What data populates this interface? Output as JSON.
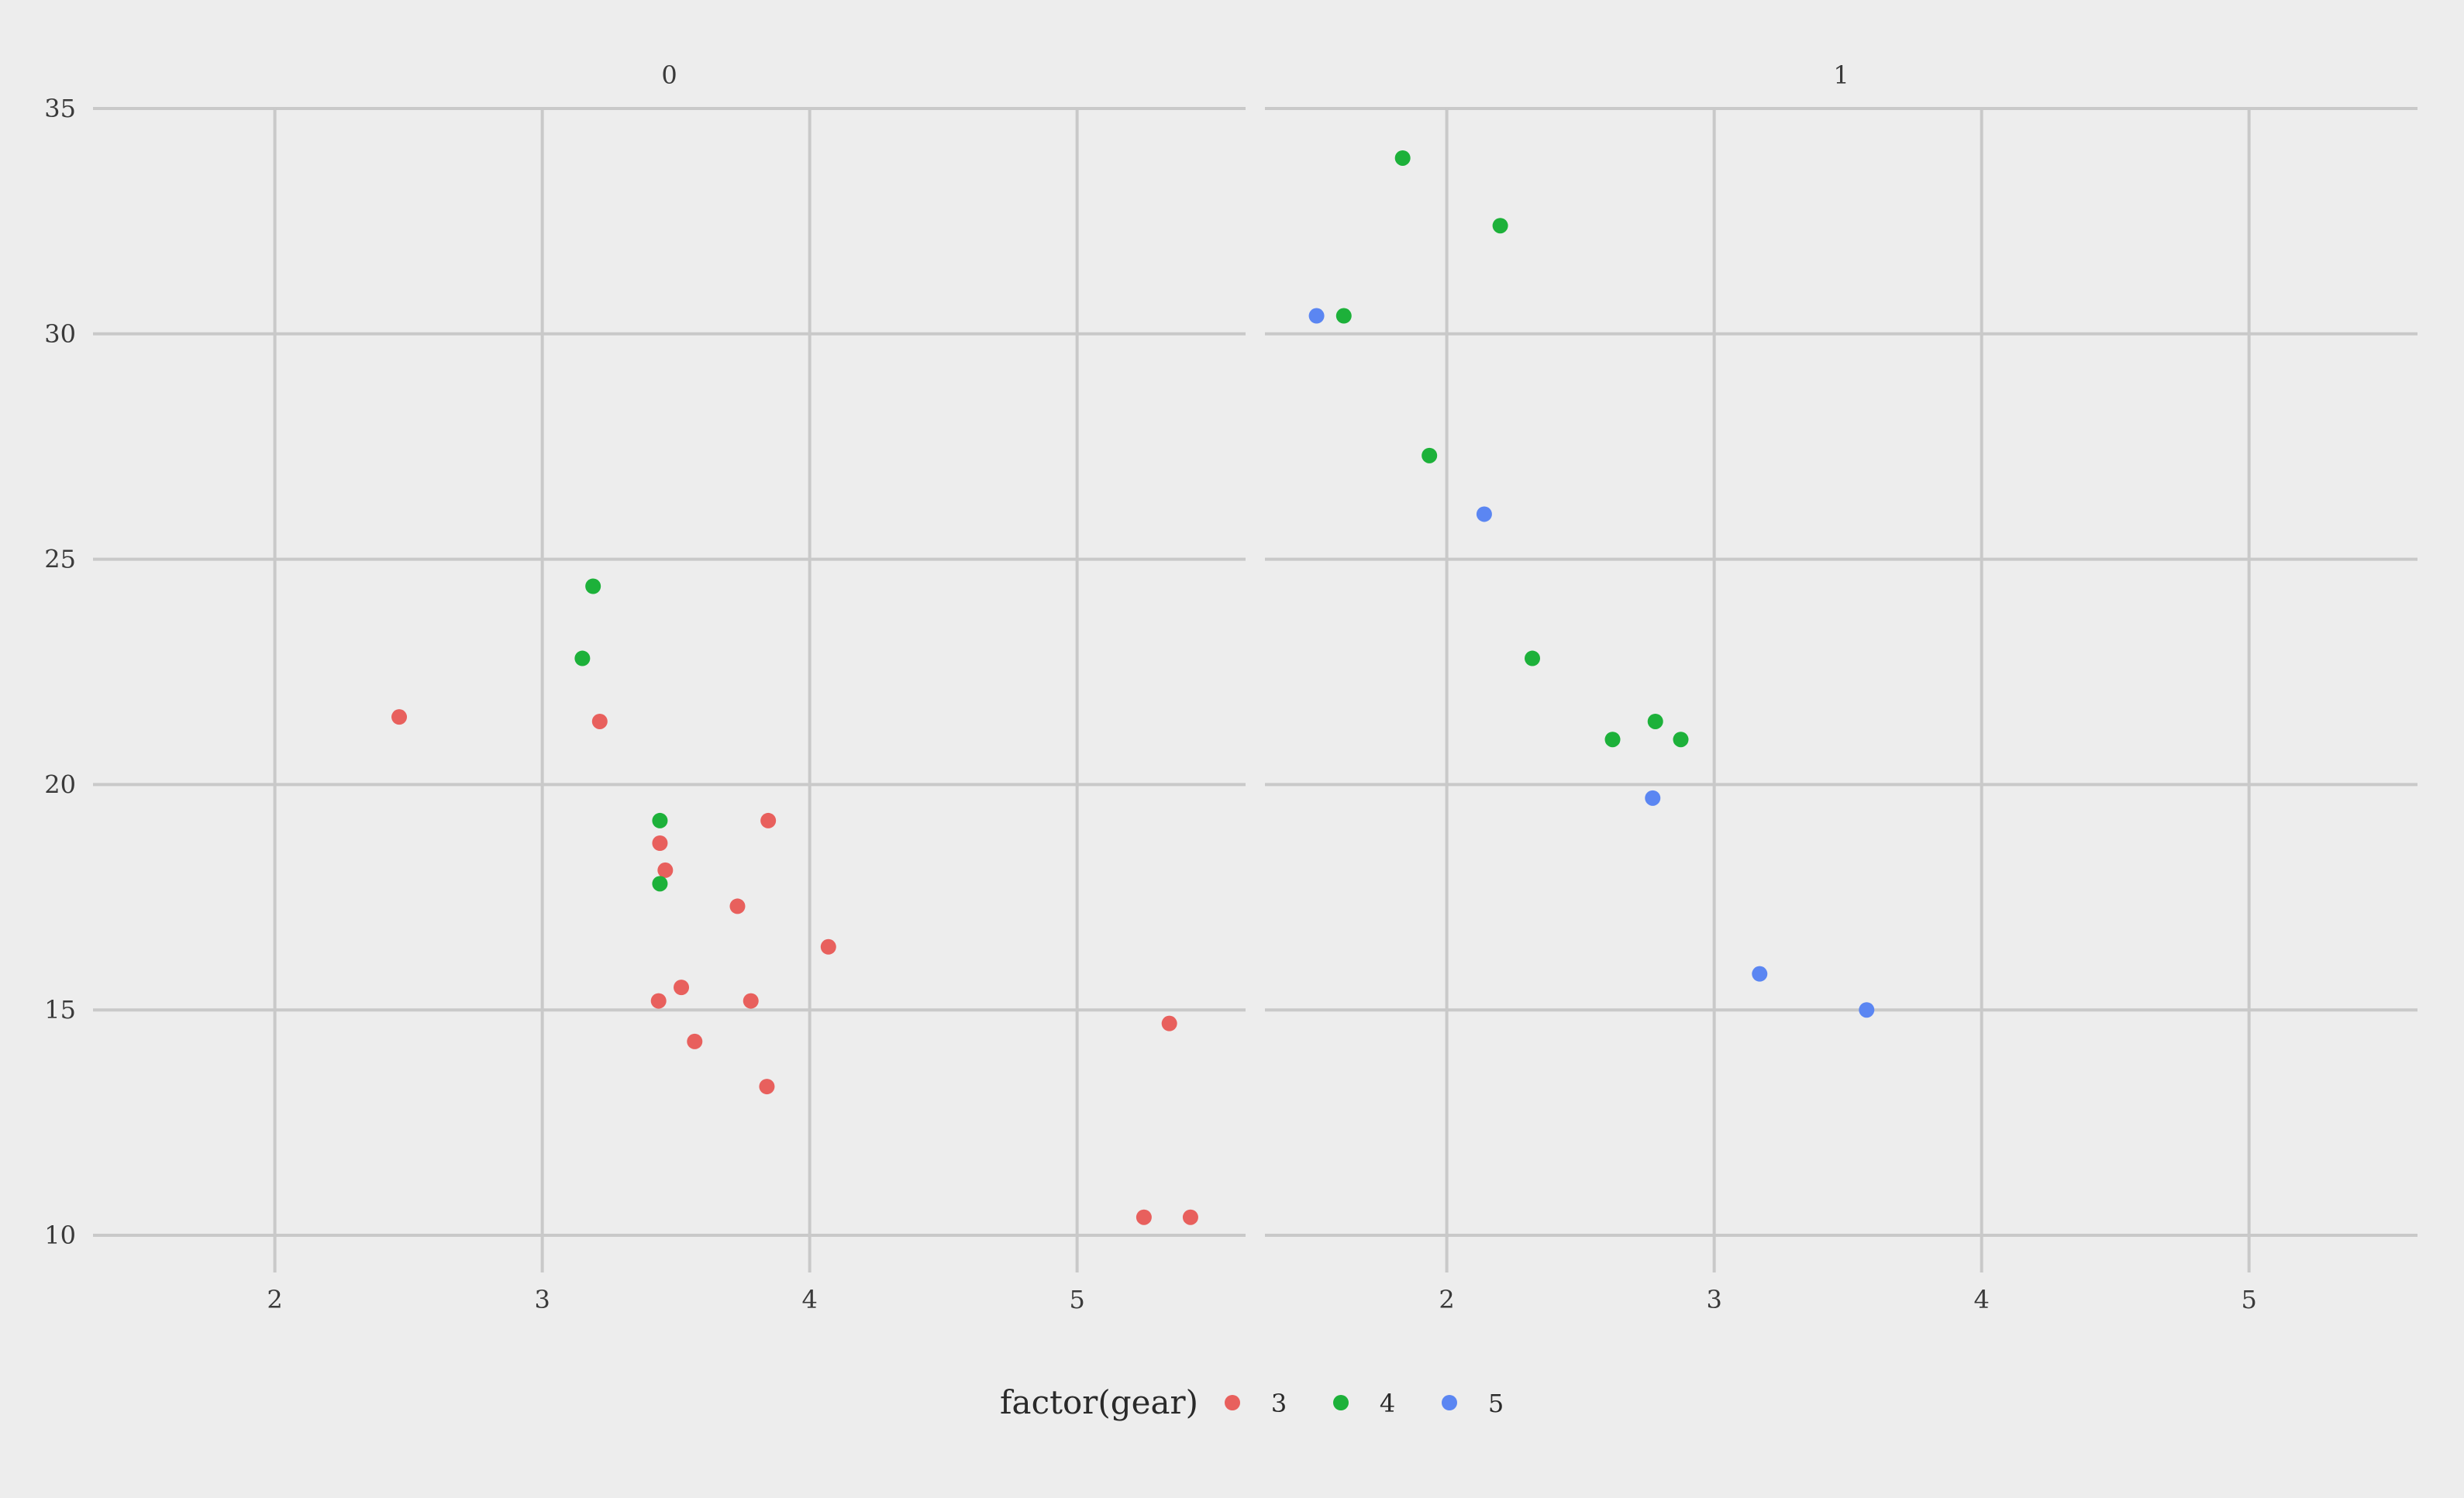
{
  "chart_data": {
    "type": "scatter",
    "x_ticks": [
      2,
      3,
      4,
      5
    ],
    "y_ticks": [
      10,
      15,
      20,
      25,
      30,
      35
    ],
    "xlim": [
      1.32,
      5.63
    ],
    "ylim": [
      9.2,
      35.0
    ],
    "grid": true,
    "legend": {
      "title": "factor(gear)",
      "placement": "bottom",
      "entries": [
        {
          "label": "3",
          "color": "#e8605d"
        },
        {
          "label": "4",
          "color": "#1db13a"
        },
        {
          "label": "5",
          "color": "#5b86f2"
        }
      ]
    },
    "panels": [
      {
        "label": "0",
        "points": [
          {
            "x": 2.465,
            "y": 21.5,
            "gear": "3"
          },
          {
            "x": 3.215,
            "y": 21.4,
            "gear": "3"
          },
          {
            "x": 3.44,
            "y": 18.7,
            "gear": "3"
          },
          {
            "x": 3.46,
            "y": 18.1,
            "gear": "3"
          },
          {
            "x": 3.57,
            "y": 14.3,
            "gear": "3"
          },
          {
            "x": 4.07,
            "y": 16.4,
            "gear": "3"
          },
          {
            "x": 3.73,
            "y": 17.3,
            "gear": "3"
          },
          {
            "x": 3.78,
            "y": 15.2,
            "gear": "3"
          },
          {
            "x": 5.25,
            "y": 10.4,
            "gear": "3"
          },
          {
            "x": 5.424,
            "y": 10.4,
            "gear": "3"
          },
          {
            "x": 5.345,
            "y": 14.7,
            "gear": "3"
          },
          {
            "x": 3.52,
            "y": 15.5,
            "gear": "3"
          },
          {
            "x": 3.435,
            "y": 15.2,
            "gear": "3"
          },
          {
            "x": 3.84,
            "y": 13.3,
            "gear": "3"
          },
          {
            "x": 3.845,
            "y": 19.2,
            "gear": "3"
          },
          {
            "x": 3.19,
            "y": 24.4,
            "gear": "4"
          },
          {
            "x": 3.15,
            "y": 22.8,
            "gear": "4"
          },
          {
            "x": 3.44,
            "y": 19.2,
            "gear": "4"
          },
          {
            "x": 3.44,
            "y": 17.8,
            "gear": "4"
          }
        ]
      },
      {
        "label": "1",
        "points": [
          {
            "x": 2.62,
            "y": 21.0,
            "gear": "4"
          },
          {
            "x": 2.875,
            "y": 21.0,
            "gear": "4"
          },
          {
            "x": 2.32,
            "y": 22.8,
            "gear": "4"
          },
          {
            "x": 2.2,
            "y": 32.4,
            "gear": "4"
          },
          {
            "x": 1.615,
            "y": 30.4,
            "gear": "4"
          },
          {
            "x": 1.835,
            "y": 33.9,
            "gear": "4"
          },
          {
            "x": 1.935,
            "y": 27.3,
            "gear": "4"
          },
          {
            "x": 2.78,
            "y": 21.4,
            "gear": "4"
          },
          {
            "x": 2.14,
            "y": 26.0,
            "gear": "5"
          },
          {
            "x": 1.513,
            "y": 30.4,
            "gear": "5"
          },
          {
            "x": 3.17,
            "y": 15.8,
            "gear": "5"
          },
          {
            "x": 2.77,
            "y": 19.7,
            "gear": "5"
          },
          {
            "x": 3.57,
            "y": 15.0,
            "gear": "5"
          }
        ]
      }
    ]
  }
}
